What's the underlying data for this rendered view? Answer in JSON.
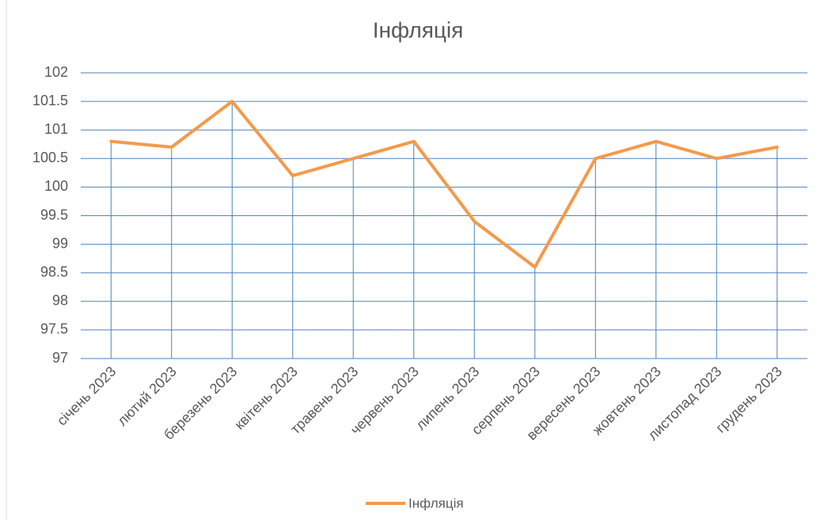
{
  "chart_data": {
    "type": "line",
    "title": "Інфляція",
    "categories": [
      "січень 2023",
      "лютий 2023",
      "березень 2023",
      "квітень 2023",
      "травень 2023",
      "червень 2023",
      "липень 2023",
      "серпень 2023",
      "вересень 2023",
      "жовтень 2023",
      "листопад 2023",
      "грудень 2023"
    ],
    "series": [
      {
        "name": "Інфляція",
        "color": "#f5994a",
        "values": [
          100.8,
          100.7,
          101.5,
          100.2,
          100.5,
          100.8,
          99.4,
          98.6,
          100.5,
          100.8,
          100.5,
          100.7
        ]
      }
    ],
    "ylim": [
      97,
      102
    ],
    "yticks": [
      97,
      97.5,
      98,
      98.5,
      99,
      99.5,
      100,
      100.5,
      101,
      101.5,
      102
    ],
    "grid": true,
    "drop_lines": true,
    "legend": "bottom"
  }
}
